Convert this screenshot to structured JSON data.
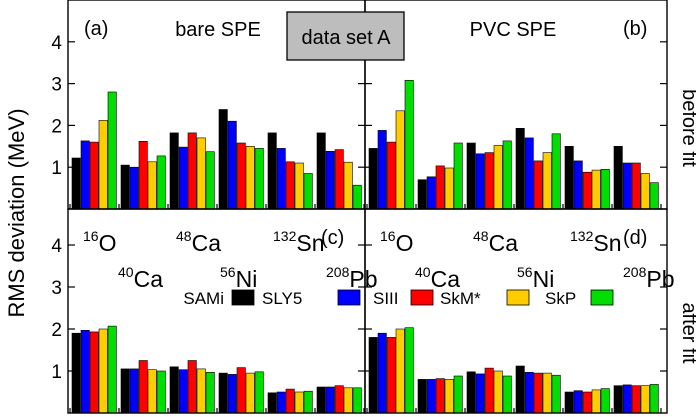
{
  "chart_data": {
    "type": "bar",
    "ylabel": "RMS deviation (MeV)",
    "ylim": [
      0,
      5
    ],
    "yticks": [
      1,
      2,
      3,
      4
    ],
    "annotation": "data set A",
    "row_labels": [
      "before fit",
      "after fit"
    ],
    "categories": [
      "16O",
      "40Ca",
      "48Ca",
      "56Ni",
      "132Sn",
      "208Pb"
    ],
    "nuclide_labels": [
      {
        "mass": "16",
        "symbol": "O"
      },
      {
        "mass": "40",
        "symbol": "Ca"
      },
      {
        "mass": "48",
        "symbol": "Ca"
      },
      {
        "mass": "56",
        "symbol": "Ni"
      },
      {
        "mass": "132",
        "symbol": "Sn"
      },
      {
        "mass": "208",
        "symbol": "Pb"
      }
    ],
    "colors": {
      "SAMi": "#000000",
      "SLY5": "#0000ff",
      "SIII": "#ff0000",
      "SkM*": "#ffcc00",
      "SkP": "#00dd00"
    },
    "legend": [
      "SAMi",
      "SLY5",
      "SIII",
      "SkM*",
      "SkP"
    ],
    "panels": [
      {
        "id": "(a)",
        "title": "bare SPE",
        "series": [
          {
            "name": "SAMi",
            "values": [
              1.22,
              1.05,
              1.82,
              2.38,
              1.82,
              1.82
            ]
          },
          {
            "name": "SLY5",
            "values": [
              1.63,
              1.0,
              1.48,
              2.1,
              1.45,
              1.38
            ]
          },
          {
            "name": "SIII",
            "values": [
              1.6,
              1.62,
              1.82,
              1.58,
              1.13,
              1.42
            ]
          },
          {
            "name": "SkM*",
            "values": [
              2.12,
              1.13,
              1.7,
              1.5,
              1.1,
              1.12
            ]
          },
          {
            "name": "SkP",
            "values": [
              2.8,
              1.27,
              1.37,
              1.45,
              0.85,
              0.57
            ]
          }
        ]
      },
      {
        "id": "(b)",
        "title": "PVC SPE",
        "series": [
          {
            "name": "SAMi",
            "values": [
              1.45,
              0.7,
              1.58,
              1.93,
              1.5,
              1.5
            ]
          },
          {
            "name": "SLY5",
            "values": [
              1.88,
              0.77,
              1.32,
              1.7,
              1.15,
              1.1
            ]
          },
          {
            "name": "SIII",
            "values": [
              1.6,
              1.03,
              1.35,
              1.15,
              0.88,
              1.1
            ]
          },
          {
            "name": "SkM*",
            "values": [
              2.35,
              0.98,
              1.52,
              1.35,
              0.93,
              0.85
            ]
          },
          {
            "name": "SkP",
            "values": [
              3.08,
              1.58,
              1.63,
              1.8,
              0.95,
              0.63
            ]
          }
        ]
      },
      {
        "id": "(c)",
        "title": "",
        "series": [
          {
            "name": "SAMi",
            "values": [
              1.9,
              1.05,
              1.1,
              0.95,
              0.48,
              0.62
            ]
          },
          {
            "name": "SLY5",
            "values": [
              1.97,
              1.05,
              1.03,
              0.92,
              0.5,
              0.62
            ]
          },
          {
            "name": "SIII",
            "values": [
              1.93,
              1.25,
              1.25,
              1.08,
              0.57,
              0.65
            ]
          },
          {
            "name": "SkM*",
            "values": [
              2.0,
              1.03,
              1.05,
              0.95,
              0.5,
              0.6
            ]
          },
          {
            "name": "SkP",
            "values": [
              2.07,
              1.0,
              0.97,
              0.98,
              0.52,
              0.6
            ]
          }
        ]
      },
      {
        "id": "(d)",
        "title": "",
        "series": [
          {
            "name": "SAMi",
            "values": [
              1.8,
              0.8,
              0.98,
              1.12,
              0.5,
              0.65
            ]
          },
          {
            "name": "SLY5",
            "values": [
              1.9,
              0.8,
              0.93,
              0.97,
              0.53,
              0.67
            ]
          },
          {
            "name": "SIII",
            "values": [
              1.8,
              0.82,
              1.07,
              0.95,
              0.5,
              0.65
            ]
          },
          {
            "name": "SkM*",
            "values": [
              2.0,
              0.8,
              1.0,
              0.95,
              0.55,
              0.65
            ]
          },
          {
            "name": "SkP",
            "values": [
              2.03,
              0.88,
              0.88,
              0.9,
              0.58,
              0.68
            ]
          }
        ]
      }
    ]
  }
}
